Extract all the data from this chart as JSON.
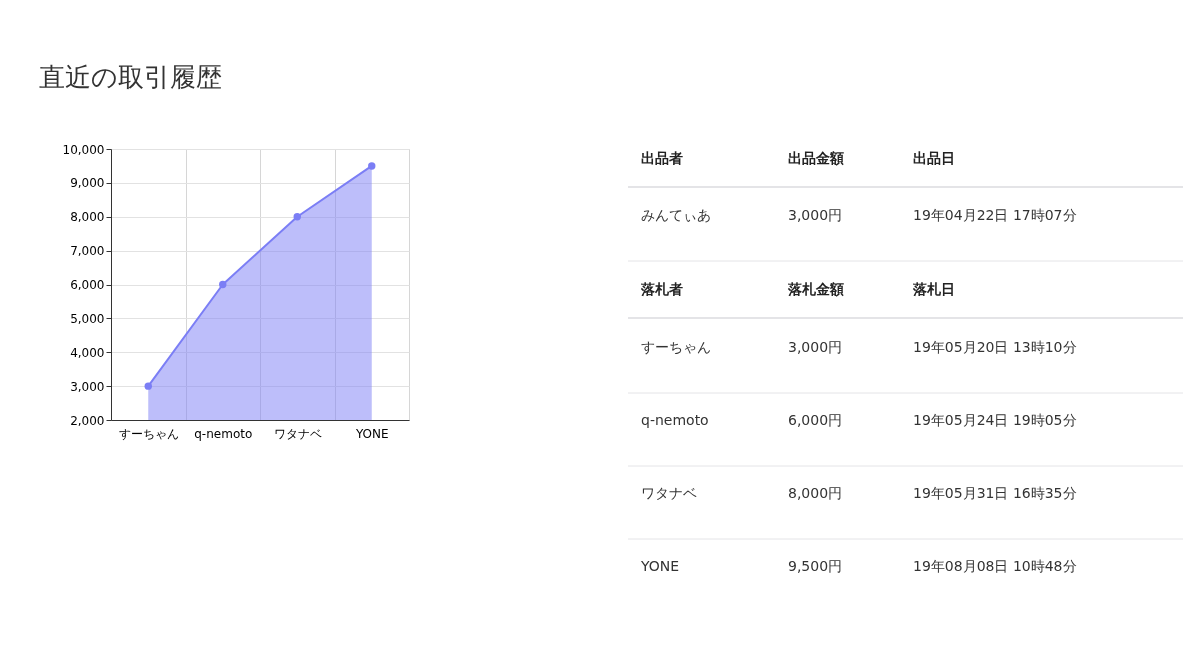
{
  "chart_data": [
    {
      "type": "area",
      "title": "直近の取引履歴",
      "categories": [
        "すーちゃん",
        "q-nemoto",
        "ワタナベ",
        "YONE"
      ],
      "values": [
        3000,
        6000,
        8000,
        9500
      ],
      "color": "#7b7ef5",
      "ylim": [
        2000,
        10000
      ],
      "yticks": [
        {
          "value": 2000,
          "label": "2,000"
        },
        {
          "value": 3000,
          "label": "3,000"
        },
        {
          "value": 4000,
          "label": "4,000"
        },
        {
          "value": 5000,
          "label": "5,000"
        },
        {
          "value": 6000,
          "label": "6,000"
        },
        {
          "value": 7000,
          "label": "7,000"
        },
        {
          "value": 8000,
          "label": "8,000"
        },
        {
          "value": 9000,
          "label": "9,000"
        },
        {
          "value": 10000,
          "label": "10,000"
        }
      ],
      "grid": true,
      "marker": "circle"
    },
    {
      "type": "other",
      "annotations": [
        "出品者",
        "出品金額",
        "出品日",
        "みんてぃあ",
        "3,000円",
        "19年04月22日 17時07分",
        "落札者",
        "落札金額",
        "落札日",
        "すーちゃん",
        "3,000円",
        "19年05月20日 13時10分",
        "q-nemoto",
        "6,000円",
        "19年05月24日 19時05分",
        "ワタナベ",
        "8,000円",
        "19年05月31日 16時35分",
        "YONE",
        "9,500円",
        "19年08月08日 10時48分"
      ]
    }
  ]
}
